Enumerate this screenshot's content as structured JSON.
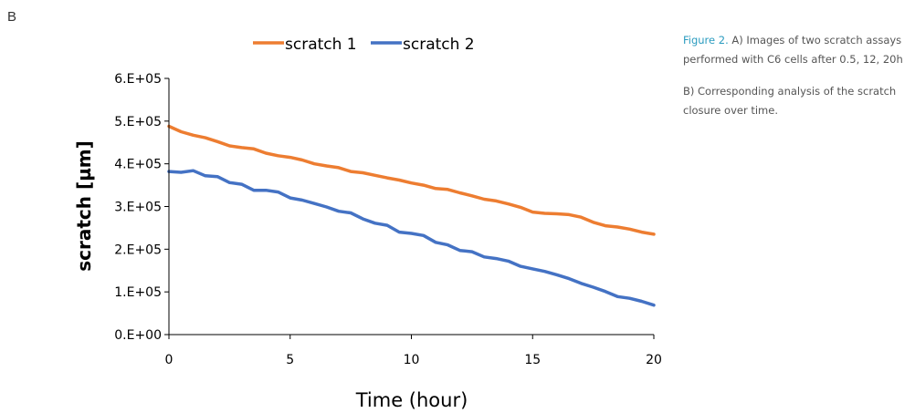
{
  "panel_label": "B",
  "caption": {
    "figure_label": "Figure 2.",
    "part_a": " A) Images of two scratch assays performed with C6 cells after 0.5, 12, 20h",
    "part_b": "B) Corresponding analysis of the scratch closure over time."
  },
  "colors": {
    "scratch_1": "#ed7d31",
    "scratch_2": "#4472c4",
    "caption_accent": "#2a9bbf"
  },
  "chart_data": {
    "type": "line",
    "title": "",
    "xlabel": "Time (hour)",
    "ylabel": "scratch [µm]",
    "xlim": [
      0,
      20
    ],
    "ylim": [
      0,
      600000
    ],
    "x_ticks": [
      0,
      5,
      10,
      15,
      20
    ],
    "x_tick_labels": [
      "0",
      "5",
      "10",
      "15",
      "20"
    ],
    "y_ticks": [
      0,
      100000,
      200000,
      300000,
      400000,
      500000,
      600000
    ],
    "y_tick_labels": [
      "0.E+00",
      "1.E+05",
      "2.E+05",
      "3.E+05",
      "4.E+05",
      "5.E+05",
      "6.E+05"
    ],
    "grid": false,
    "legend_position": "top",
    "x": [
      0,
      0.5,
      1,
      1.5,
      2,
      2.5,
      3,
      3.5,
      4,
      4.5,
      5,
      5.5,
      6,
      6.5,
      7,
      7.5,
      8,
      8.5,
      9,
      9.5,
      10,
      10.5,
      11,
      11.5,
      12,
      12.5,
      13,
      13.5,
      14,
      14.5,
      15,
      15.5,
      16,
      16.5,
      17,
      17.5,
      18,
      18.5,
      19,
      19.5,
      20
    ],
    "series": [
      {
        "name": "scratch 1",
        "color": "#ed7d31",
        "values": [
          488000,
          475000,
          467000,
          461000,
          452000,
          442000,
          438000,
          435000,
          425000,
          419000,
          415000,
          409000,
          400000,
          395000,
          391000,
          382000,
          379000,
          373000,
          367000,
          362000,
          355000,
          350000,
          342000,
          340000,
          332000,
          325000,
          317000,
          313000,
          306000,
          298000,
          287000,
          284000,
          283000,
          281000,
          275000,
          263000,
          255000,
          252000,
          247000,
          240000,
          235000
        ]
      },
      {
        "name": "scratch 2",
        "color": "#4472c4",
        "values": [
          382000,
          380000,
          384000,
          372000,
          370000,
          356000,
          352000,
          338000,
          338000,
          334000,
          320000,
          315000,
          307000,
          299000,
          289000,
          285000,
          271000,
          261000,
          256000,
          240000,
          237000,
          232000,
          216000,
          210000,
          197000,
          194000,
          182000,
          178000,
          172000,
          160000,
          154000,
          148000,
          140000,
          131000,
          120000,
          111000,
          101000,
          89000,
          85000,
          78000,
          69000
        ]
      }
    ]
  }
}
